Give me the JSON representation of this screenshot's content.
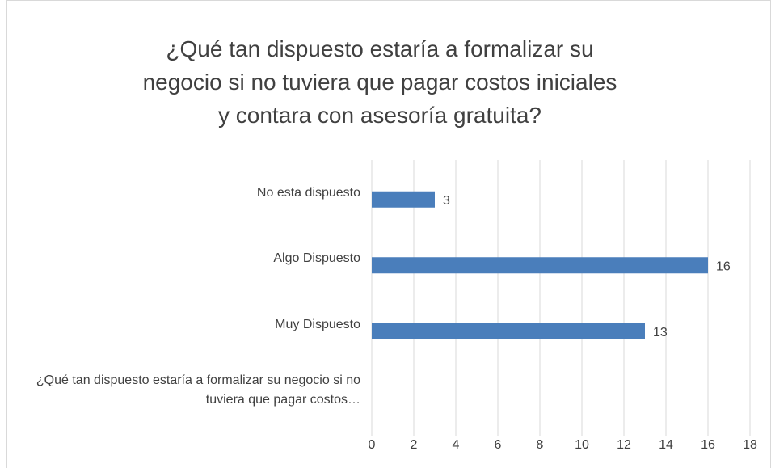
{
  "chart_data": {
    "type": "bar",
    "orientation": "horizontal",
    "title": "¿Qué tan dispuesto estaría a formalizar su negocio si no tuviera que pagar costos iniciales y contara con asesoría gratuita?",
    "categories": [
      "No esta dispuesto",
      "Algo Dispuesto",
      "Muy Dispuesto",
      "¿Qué tan dispuesto estaría a formalizar su negocio si no tuviera que pagar costos…"
    ],
    "values": [
      3,
      16,
      13,
      null
    ],
    "color": "#4a7ebb",
    "xlim": [
      0,
      18
    ],
    "xticks": [
      0,
      2,
      4,
      6,
      8,
      10,
      12,
      14,
      16,
      18
    ],
    "grid": true
  }
}
